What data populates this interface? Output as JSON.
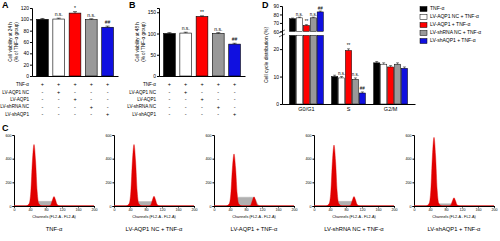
{
  "chart_data": [
    {
      "type": "bar",
      "panel": "A",
      "ylabel": [
        "Cell viability at 24 h",
        "(% of TNF-α group)"
      ],
      "categories": [
        null,
        null,
        null,
        null,
        null
      ],
      "values": [
        100,
        100.5,
        111,
        99.5,
        86
      ],
      "errors": [
        1.5,
        1.5,
        2.5,
        1.5,
        2
      ],
      "colors": [
        "#000000",
        "#ffffff",
        "#ff0000",
        "#999999",
        "#1010e0"
      ],
      "annotations": [
        null,
        "n.s.",
        "*",
        "n.s.",
        "##"
      ],
      "ylim": [
        0,
        120
      ],
      "yticks": [
        0,
        20,
        40,
        60,
        80,
        100,
        120
      ],
      "conditions": [
        {
          "name": "TNF-α",
          "signs": [
            "+",
            "+",
            "+",
            "+",
            "+"
          ]
        },
        {
          "name": "LV-AQP1 NC",
          "signs": [
            "-",
            "+",
            "-",
            "-",
            "-"
          ]
        },
        {
          "name": "LV-AQP1",
          "signs": [
            "-",
            "-",
            "+",
            "-",
            "-"
          ]
        },
        {
          "name": "LV-shRNA NC",
          "signs": [
            "-",
            "-",
            "-",
            "+",
            "-"
          ]
        },
        {
          "name": "LV-shAQP1",
          "signs": [
            "-",
            "-",
            "-",
            "-",
            "+"
          ]
        }
      ]
    },
    {
      "type": "bar",
      "panel": "B",
      "ylabel": [
        "Cell viability at 48 h",
        "(% of TNF-α group)"
      ],
      "categories": [
        null,
        null,
        null,
        null,
        null
      ],
      "values": [
        100,
        101,
        140,
        100,
        75
      ],
      "errors": [
        2,
        2,
        1.5,
        2,
        2
      ],
      "colors": [
        "#000000",
        "#ffffff",
        "#ff0000",
        "#999999",
        "#1010e0"
      ],
      "annotations": [
        null,
        "n.s.",
        "**",
        "n.s.",
        "##"
      ],
      "ylim": [
        0,
        160
      ],
      "yticks": [
        0,
        50,
        100,
        150
      ],
      "conditions": [
        {
          "name": "TNF-α",
          "signs": [
            "+",
            "+",
            "+",
            "+",
            "+"
          ]
        },
        {
          "name": "LV-AQP1 NC",
          "signs": [
            "-",
            "+",
            "-",
            "-",
            "-"
          ]
        },
        {
          "name": "LV-AQP1",
          "signs": [
            "-",
            "-",
            "+",
            "-",
            "-"
          ]
        },
        {
          "name": "LV-shRNA NC",
          "signs": [
            "-",
            "-",
            "-",
            "+",
            "-"
          ]
        },
        {
          "name": "LV-shAQP1",
          "signs": [
            "-",
            "-",
            "-",
            "-",
            "+"
          ]
        }
      ]
    },
    {
      "type": "bar",
      "panel": "D",
      "ylabel": "Cell cycle distribution (%)",
      "categories": [
        "G0/G1",
        "S",
        "G2/M"
      ],
      "series": [
        {
          "name": "TNF-α",
          "color": "#000000",
          "values": [
            75,
            10,
            15
          ],
          "errors": [
            0.8,
            0.5,
            0.5
          ],
          "annotations": [
            null,
            null,
            null
          ]
        },
        {
          "name": "LV-AQP1 NC + TNF-α",
          "color": "#ffffff",
          "values": [
            76,
            9.5,
            14.5
          ],
          "errors": [
            0.8,
            0.5,
            0.5
          ],
          "annotations": [
            "n.s.",
            "n.s.",
            null
          ]
        },
        {
          "name": "LV-AQP1 + TNF-α",
          "color": "#ff0000",
          "values": [
            67,
            19.5,
            13.5
          ],
          "errors": [
            1,
            0.6,
            0.5
          ],
          "annotations": [
            "**",
            "**",
            null
          ]
        },
        {
          "name": "LV-shRNA NC + TNF-α",
          "color": "#999999",
          "values": [
            76,
            9,
            14.5
          ],
          "errors": [
            0.8,
            0.5,
            0.5
          ],
          "annotations": [
            "n.s.",
            "n.s.",
            null
          ]
        },
        {
          "name": "LV-shAQP1 + TNF-α",
          "color": "#1010e0",
          "values": [
            83,
            4,
            13
          ],
          "errors": [
            1,
            0.4,
            0.5
          ],
          "annotations": [
            "##",
            "##",
            null
          ]
        }
      ],
      "ylim": [
        0,
        90
      ],
      "break": [
        25,
        60
      ],
      "yticks": [
        0,
        10,
        20,
        60,
        70,
        80,
        90
      ],
      "legend": "right"
    },
    {
      "type": "area",
      "panel": "C",
      "title": "TNF-α",
      "xlabel": "Channels (FL2-A - FL2-A)",
      "x": [
        0,
        30,
        38,
        42,
        46,
        50,
        54,
        58,
        62,
        70,
        80,
        88,
        92,
        96,
        100,
        104,
        108,
        115,
        130,
        200
      ],
      "series": [
        {
          "color": "#b0b0b0",
          "values": [
            0,
            0,
            0,
            0,
            12,
            24,
            32,
            36,
            40,
            40,
            40,
            40,
            40,
            40,
            36,
            28,
            12,
            0,
            0,
            0
          ]
        },
        {
          "color": "#e00000",
          "values": [
            0,
            0,
            21,
            120,
            380,
            520,
            380,
            120,
            21,
            0,
            0,
            0,
            0,
            0,
            0,
            0,
            0,
            0,
            0,
            0
          ]
        },
        {
          "color": "#e00000",
          "values": [
            0,
            0,
            0,
            0,
            0,
            0,
            0,
            0,
            0,
            0,
            0,
            0,
            10,
            50,
            80,
            50,
            10,
            0,
            0,
            0
          ]
        }
      ],
      "xlim": [
        0,
        200
      ],
      "xticks": [
        0,
        40,
        80,
        120,
        160,
        200
      ],
      "ylim": [
        0,
        600
      ],
      "yticks": [
        0,
        200,
        400,
        600
      ]
    },
    {
      "type": "area",
      "title": "LV-AQP1 NC + TNF-α",
      "xlabel": "Channels (FL2-A - FL2-A)",
      "x": [
        0,
        30,
        38,
        42,
        46,
        50,
        54,
        58,
        62,
        70,
        80,
        88,
        92,
        96,
        100,
        104,
        108,
        115,
        130,
        200
      ],
      "series": [
        {
          "color": "#b0b0b0",
          "values": [
            0,
            0,
            0,
            0,
            11,
            23,
            30,
            34,
            38,
            38,
            38,
            38,
            38,
            38,
            34,
            27,
            11,
            0,
            0,
            0
          ]
        },
        {
          "color": "#e00000",
          "values": [
            0,
            0,
            21,
            120,
            380,
            520,
            380,
            120,
            21,
            0,
            0,
            0,
            0,
            0,
            0,
            0,
            0,
            0,
            0,
            0
          ]
        },
        {
          "color": "#e00000",
          "values": [
            0,
            0,
            0,
            0,
            0,
            0,
            0,
            0,
            0,
            0,
            0,
            0,
            10,
            51,
            82,
            51,
            10,
            0,
            0,
            0
          ]
        }
      ],
      "xlim": [
        0,
        200
      ],
      "xticks": [
        0,
        40,
        80,
        120,
        160,
        200
      ],
      "ylim": [
        0,
        600
      ],
      "yticks": [
        0,
        200,
        400,
        600
      ]
    },
    {
      "type": "area",
      "title": "LV-AQP1 + TNF-α",
      "xlabel": "Channels (FL2-A - FL2-A)",
      "x": [
        0,
        30,
        38,
        42,
        46,
        50,
        54,
        58,
        62,
        70,
        80,
        88,
        92,
        96,
        100,
        104,
        108,
        115,
        130,
        200
      ],
      "series": [
        {
          "color": "#b0b0b0",
          "values": [
            0,
            0,
            0,
            0,
            23,
            45,
            60,
            68,
            75,
            75,
            75,
            75,
            75,
            75,
            68,
            53,
            23,
            0,
            0,
            0
          ]
        },
        {
          "color": "#e00000",
          "values": [
            0,
            0,
            18,
            101,
            321,
            440,
            321,
            101,
            18,
            0,
            0,
            0,
            0,
            0,
            0,
            0,
            0,
            0,
            0,
            0
          ]
        },
        {
          "color": "#e00000",
          "values": [
            0,
            0,
            0,
            0,
            0,
            0,
            0,
            0,
            0,
            0,
            0,
            0,
            9,
            48,
            78,
            48,
            9,
            0,
            0,
            0
          ]
        }
      ],
      "xlim": [
        0,
        200
      ],
      "xticks": [
        0,
        40,
        80,
        120,
        160,
        200
      ],
      "ylim": [
        0,
        600
      ],
      "yticks": [
        0,
        200,
        400,
        600
      ]
    },
    {
      "type": "area",
      "title": "LV-shRNA NC + TNF-α",
      "xlabel": "Channels (FL2-A - FL2-A)",
      "x": [
        0,
        30,
        38,
        42,
        46,
        50,
        54,
        58,
        62,
        70,
        80,
        88,
        92,
        96,
        100,
        104,
        108,
        115,
        130,
        200
      ],
      "series": [
        {
          "color": "#b0b0b0",
          "values": [
            0,
            0,
            0,
            0,
            12,
            24,
            32,
            36,
            40,
            40,
            40,
            40,
            40,
            40,
            36,
            28,
            12,
            0,
            0,
            0
          ]
        },
        {
          "color": "#e00000",
          "values": [
            0,
            0,
            21,
            118,
            376,
            515,
            376,
            118,
            21,
            0,
            0,
            0,
            0,
            0,
            0,
            0,
            0,
            0,
            0,
            0
          ]
        },
        {
          "color": "#e00000",
          "values": [
            0,
            0,
            0,
            0,
            0,
            0,
            0,
            0,
            0,
            0,
            0,
            0,
            10,
            50,
            80,
            50,
            10,
            0,
            0,
            0
          ]
        }
      ],
      "xlim": [
        0,
        200
      ],
      "xticks": [
        0,
        40,
        80,
        120,
        160,
        200
      ],
      "ylim": [
        0,
        600
      ],
      "yticks": [
        0,
        200,
        400,
        600
      ]
    },
    {
      "type": "area",
      "title": "LV-shAQP1 + TNF-α",
      "xlabel": "Channels (FL2-A - FL2-A)",
      "x": [
        0,
        30,
        38,
        42,
        46,
        50,
        54,
        58,
        62,
        70,
        80,
        88,
        92,
        96,
        100,
        104,
        108,
        115,
        130,
        200
      ],
      "series": [
        {
          "color": "#b0b0b0",
          "values": [
            0,
            0,
            0,
            0,
            6,
            12,
            16,
            18,
            20,
            20,
            20,
            20,
            20,
            20,
            18,
            14,
            6,
            0,
            0,
            0
          ]
        },
        {
          "color": "#e00000",
          "values": [
            0,
            0,
            23,
            133,
            423,
            580,
            423,
            133,
            23,
            0,
            0,
            0,
            0,
            0,
            0,
            0,
            0,
            0,
            0,
            0
          ]
        },
        {
          "color": "#e00000",
          "values": [
            0,
            0,
            0,
            0,
            0,
            0,
            0,
            0,
            0,
            0,
            0,
            0,
            8,
            43,
            70,
            43,
            8,
            0,
            0,
            0
          ]
        }
      ],
      "xlim": [
        0,
        200
      ],
      "xticks": [
        0,
        40,
        80,
        120,
        160,
        200
      ],
      "ylim": [
        0,
        600
      ],
      "yticks": [
        0,
        200,
        400,
        600
      ]
    }
  ]
}
